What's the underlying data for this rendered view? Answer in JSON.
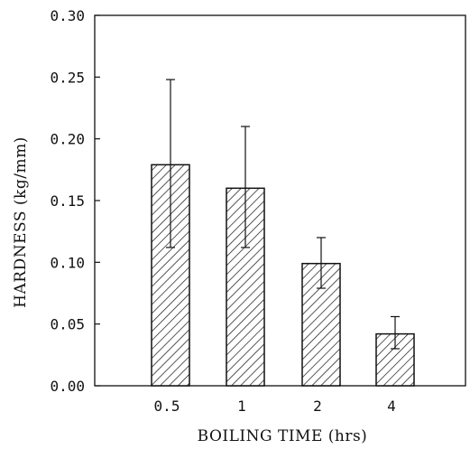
{
  "chart_data": {
    "type": "bar",
    "title": "",
    "xlabel": "BOILING TIME (hrs)",
    "ylabel": "HARDNESS (kg/mm)",
    "categories": [
      "0.5",
      "1",
      "2",
      "4"
    ],
    "values": [
      0.179,
      0.16,
      0.099,
      0.042
    ],
    "error_upper": [
      0.248,
      0.21,
      0.12,
      0.056
    ],
    "error_lower": [
      0.112,
      0.112,
      0.079,
      0.03
    ],
    "ylim": [
      0,
      0.3
    ],
    "yticks": [
      0.0,
      0.05,
      0.1,
      0.15,
      0.2,
      0.25,
      0.3
    ],
    "ytick_labels": [
      "0.00",
      "0.05",
      "0.10",
      "0.15",
      "0.20",
      "0.25",
      "0.30"
    ],
    "grid": false,
    "bar_pattern": "diagonal-hatch",
    "colors": {
      "ink": "#111111",
      "background": "#ffffff"
    }
  }
}
